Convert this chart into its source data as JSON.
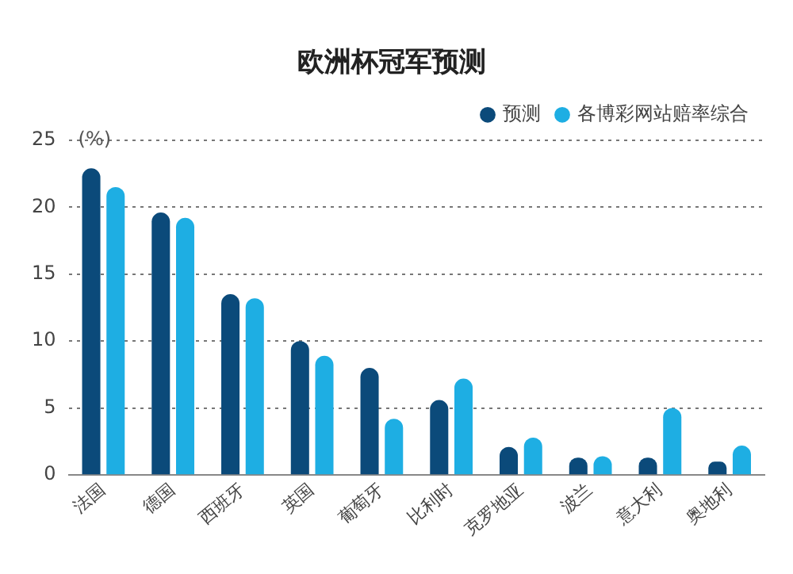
{
  "chart_data": {
    "type": "bar",
    "title": "欧洲杯冠军预测",
    "ylabel": "(%)",
    "categories": [
      "法国",
      "德国",
      "西班牙",
      "英国",
      "葡萄牙",
      "比利时",
      "克罗地亚",
      "波兰",
      "意大利",
      "奥地利"
    ],
    "series": [
      {
        "name": "预测",
        "color": "#0b4a7a",
        "values": [
          22.9,
          19.6,
          13.5,
          10,
          8,
          5.6,
          2.1,
          1.3,
          1.3,
          1
        ]
      },
      {
        "name": "各博彩网站赔率综合",
        "color": "#1eaee3",
        "values": [
          21.5,
          19.2,
          13.2,
          8.9,
          4.2,
          7.2,
          2.8,
          1.4,
          5,
          2.2
        ]
      }
    ],
    "ylim": [
      0,
      25
    ],
    "yticks": [
      0,
      5,
      10,
      15,
      20,
      25
    ],
    "grid": "y",
    "legend": "top right"
  }
}
